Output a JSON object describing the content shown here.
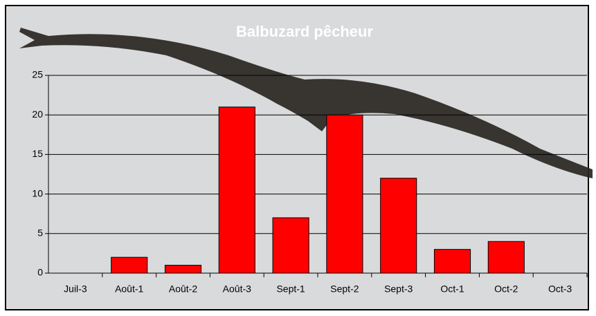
{
  "chart_data": {
    "type": "bar",
    "title": "Balbuzard pêcheur",
    "categories": [
      "Juil-3",
      "Août-1",
      "Août-2",
      "Août-3",
      "Sept-1",
      "Sept-2",
      "Sept-3",
      "Oct-1",
      "Oct-2",
      "Oct-3"
    ],
    "values": [
      0,
      2,
      1,
      21,
      7,
      20,
      12,
      3,
      4,
      0
    ],
    "color": "#ff0000",
    "ylim": [
      0,
      25
    ],
    "yticks": [
      0,
      5,
      10,
      15,
      20,
      25
    ],
    "grid": true
  }
}
